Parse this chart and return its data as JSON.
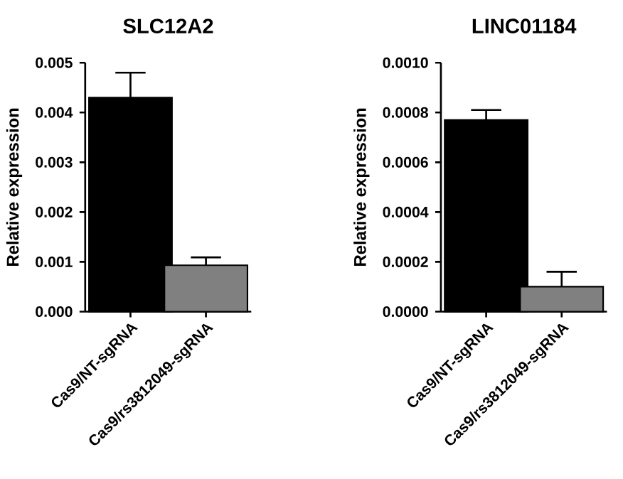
{
  "chart_data": [
    {
      "type": "bar",
      "title": "SLC12A2",
      "ylabel": "Relative expression",
      "categories": [
        "Cas9/NT-sgRNA",
        "Cas9/rs3812049-sgRNA"
      ],
      "values": [
        0.0043,
        0.00093
      ],
      "errors": [
        0.0005,
        0.00016
      ],
      "colors": [
        "#000000",
        "#808080"
      ],
      "ylim": [
        0,
        0.005
      ],
      "yticks": [
        {
          "value": 0,
          "label": "0.000"
        },
        {
          "value": 0.001,
          "label": "0.001"
        },
        {
          "value": 0.002,
          "label": "0.002"
        },
        {
          "value": 0.003,
          "label": "0.003"
        },
        {
          "value": 0.004,
          "label": "0.004"
        },
        {
          "value": 0.005,
          "label": "0.005"
        }
      ]
    },
    {
      "type": "bar",
      "title": "LINC01184",
      "ylabel": "Relative expression",
      "categories": [
        "Cas9/NT-sgRNA",
        "Cas9/rs3812049-sgRNA"
      ],
      "values": [
        0.00077,
        0.0001
      ],
      "errors": [
        4e-05,
        6e-05
      ],
      "colors": [
        "#000000",
        "#808080"
      ],
      "ylim": [
        0,
        0.001
      ],
      "yticks": [
        {
          "value": 0,
          "label": "0.0000"
        },
        {
          "value": 0.0002,
          "label": "0.0002"
        },
        {
          "value": 0.0004,
          "label": "0.0004"
        },
        {
          "value": 0.0006,
          "label": "0.0006"
        },
        {
          "value": 0.0008,
          "label": "0.0008"
        },
        {
          "value": 0.001,
          "label": "0.0010"
        }
      ]
    }
  ]
}
